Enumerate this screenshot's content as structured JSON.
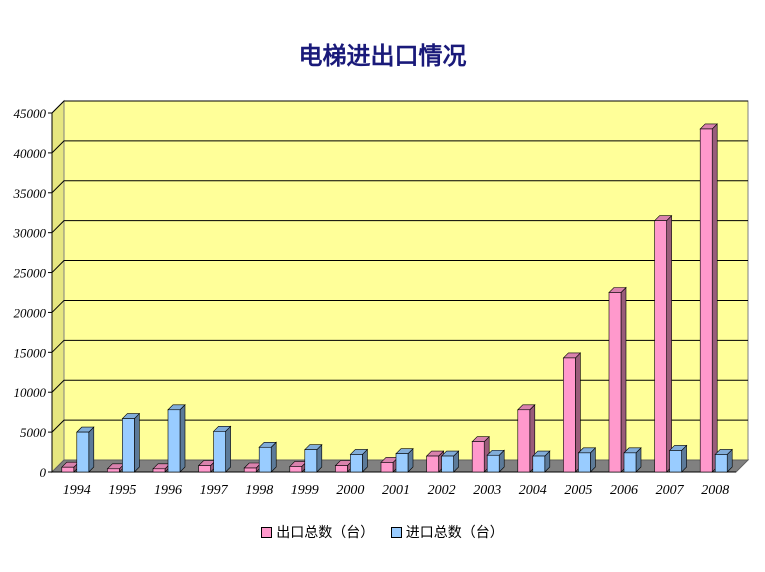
{
  "chart_data": {
    "type": "bar",
    "title": "电梯进出口情况",
    "categories": [
      "1994",
      "1995",
      "1996",
      "1997",
      "1998",
      "1999",
      "2000",
      "2001",
      "2002",
      "2003",
      "2004",
      "2005",
      "2006",
      "2007",
      "2008"
    ],
    "series": [
      {
        "name": "出口总数（台）",
        "color": "#ff99cc",
        "values": [
          600,
          400,
          400,
          800,
          500,
          700,
          800,
          1200,
          2000,
          3800,
          7800,
          14300,
          22500,
          31500,
          43000
        ]
      },
      {
        "name": "进口总数（台）",
        "color": "#99ccff",
        "values": [
          5000,
          6700,
          7800,
          5100,
          3100,
          2800,
          2200,
          2300,
          2000,
          2100,
          2000,
          2400,
          2400,
          2700,
          2200
        ]
      }
    ],
    "y_ticks": [
      "0",
      "5000",
      "10000",
      "15000",
      "20000",
      "25000",
      "30000",
      "35000",
      "40000",
      "45000"
    ],
    "ylim": [
      0,
      45000
    ],
    "xlabel": "",
    "ylabel": "",
    "grid": true,
    "legend_position": "bottom",
    "plot_background": "#ffff99"
  }
}
